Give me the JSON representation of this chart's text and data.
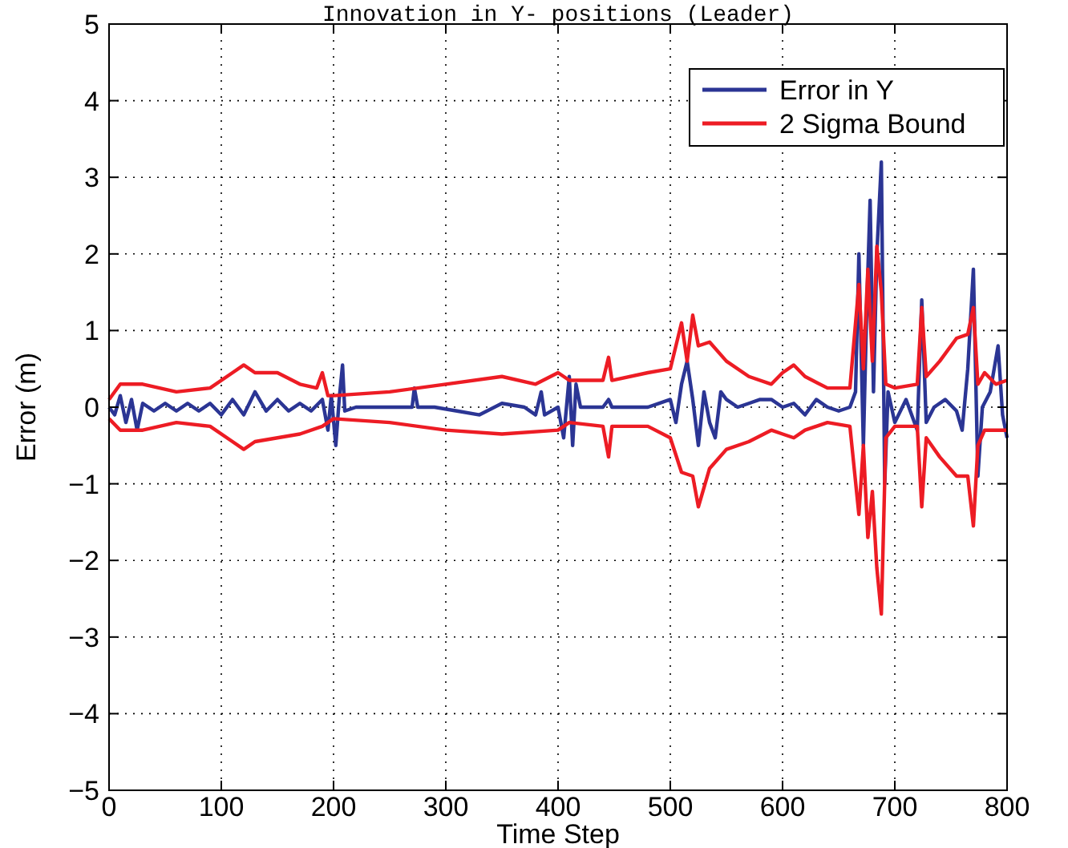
{
  "chart_data": {
    "type": "line",
    "title": "Innovation in Y- positions (Leader)",
    "xlabel": "Time Step",
    "ylabel": "Error (m)",
    "xlim": [
      0,
      800
    ],
    "xticks": [
      0,
      100,
      200,
      300,
      400,
      500,
      600,
      700,
      800
    ],
    "ylim": [
      -5,
      5
    ],
    "yticks": [
      -5,
      -4,
      -3,
      -2,
      -1,
      0,
      1,
      2,
      3,
      4,
      5
    ],
    "grid": true,
    "legend": "top right",
    "series": [
      {
        "name": "Error in Y",
        "color": "#2b3594",
        "x": [
          0,
          5,
          10,
          15,
          20,
          25,
          30,
          40,
          50,
          60,
          70,
          80,
          90,
          100,
          110,
          120,
          130,
          140,
          150,
          160,
          170,
          180,
          190,
          195,
          198,
          202,
          205,
          208,
          210,
          220,
          240,
          260,
          270,
          272,
          275,
          290,
          310,
          330,
          350,
          370,
          380,
          385,
          388,
          400,
          405,
          410,
          413,
          416,
          420,
          440,
          445,
          448,
          460,
          480,
          500,
          505,
          510,
          515,
          520,
          525,
          530,
          535,
          540,
          545,
          550,
          560,
          570,
          580,
          590,
          600,
          610,
          620,
          630,
          640,
          650,
          660,
          665,
          668,
          672,
          675,
          678,
          681,
          684,
          688,
          691,
          694,
          700,
          710,
          720,
          724,
          728,
          735,
          745,
          755,
          760,
          765,
          770,
          774,
          778,
          785,
          792,
          796,
          800
        ],
        "values": [
          0,
          -0.1,
          0.15,
          -0.2,
          0.1,
          -0.3,
          0.05,
          -0.05,
          0.05,
          -0.05,
          0.05,
          -0.05,
          0.05,
          -0.1,
          0.1,
          -0.1,
          0.2,
          -0.05,
          0.1,
          -0.05,
          0.05,
          -0.05,
          0.1,
          -0.3,
          0.15,
          -0.5,
          0.1,
          0.55,
          -0.05,
          0,
          0,
          0,
          0,
          0.25,
          0,
          0,
          -0.05,
          -0.1,
          0.05,
          0,
          -0.1,
          0.2,
          -0.1,
          0,
          -0.4,
          0.4,
          -0.5,
          0.3,
          0,
          0,
          0.1,
          0,
          0,
          0,
          0.1,
          -0.2,
          0.3,
          0.6,
          0.1,
          -0.5,
          0.2,
          -0.2,
          -0.4,
          0.2,
          0.1,
          0,
          0.05,
          0.1,
          0.1,
          0,
          0.05,
          -0.1,
          0.1,
          0,
          -0.05,
          0,
          0.2,
          2.0,
          -0.5,
          1.3,
          2.7,
          0.2,
          2.0,
          3.2,
          -1.0,
          0.2,
          -0.2,
          0.1,
          -0.3,
          1.4,
          -0.2,
          0,
          0.1,
          -0.05,
          -0.3,
          0.5,
          1.8,
          -0.9,
          0,
          0.2,
          0.8,
          -0.1,
          -0.4
        ]
      },
      {
        "name": "2 Sigma Bound",
        "color": "#ed1c24",
        "x": [
          0,
          10,
          30,
          60,
          90,
          110,
          120,
          130,
          150,
          170,
          185,
          190,
          195,
          200,
          250,
          300,
          350,
          380,
          400,
          410,
          440,
          445,
          448,
          480,
          500,
          510,
          515,
          520,
          525,
          535,
          550,
          570,
          590,
          600,
          610,
          620,
          640,
          660,
          668,
          672,
          676,
          680,
          684,
          688,
          692,
          700,
          720,
          724,
          728,
          740,
          755,
          765,
          770,
          774,
          780,
          790,
          800
        ],
        "values": [
          0.1,
          0.3,
          0.3,
          0.2,
          0.25,
          0.45,
          0.55,
          0.45,
          0.45,
          0.3,
          0.25,
          0.45,
          0.15,
          0.15,
          0.2,
          0.3,
          0.4,
          0.3,
          0.45,
          0.35,
          0.35,
          0.65,
          0.35,
          0.45,
          0.5,
          1.1,
          0.6,
          1.2,
          0.8,
          0.85,
          0.6,
          0.4,
          0.3,
          0.45,
          0.55,
          0.4,
          0.25,
          0.25,
          1.6,
          0.5,
          1.8,
          0.6,
          2.1,
          1.5,
          0.3,
          0.25,
          0.3,
          1.3,
          0.4,
          0.6,
          0.9,
          0.95,
          1.3,
          0.3,
          0.45,
          0.3,
          0.35
        ]
      },
      {
        "color": "#ed1c24",
        "x": [
          0,
          10,
          30,
          60,
          90,
          110,
          120,
          130,
          150,
          170,
          190,
          200,
          250,
          300,
          350,
          400,
          410,
          440,
          445,
          448,
          480,
          500,
          510,
          520,
          525,
          535,
          550,
          570,
          590,
          600,
          610,
          620,
          640,
          660,
          668,
          672,
          676,
          680,
          684,
          688,
          692,
          700,
          720,
          724,
          728,
          740,
          755,
          765,
          770,
          774,
          780,
          790,
          800
        ],
        "values": [
          -0.15,
          -0.3,
          -0.3,
          -0.2,
          -0.25,
          -0.45,
          -0.55,
          -0.45,
          -0.4,
          -0.35,
          -0.25,
          -0.15,
          -0.2,
          -0.3,
          -0.35,
          -0.3,
          -0.2,
          -0.25,
          -0.65,
          -0.25,
          -0.25,
          -0.4,
          -0.85,
          -0.9,
          -1.3,
          -0.8,
          -0.55,
          -0.45,
          -0.3,
          -0.35,
          -0.4,
          -0.3,
          -0.2,
          -0.25,
          -1.4,
          -0.5,
          -1.7,
          -1.1,
          -2.1,
          -2.7,
          -0.4,
          -0.25,
          -0.25,
          -1.3,
          -0.4,
          -0.65,
          -0.9,
          -0.9,
          -1.55,
          -0.5,
          -0.3,
          -0.3,
          -0.3
        ]
      }
    ],
    "line_style": "solid"
  }
}
